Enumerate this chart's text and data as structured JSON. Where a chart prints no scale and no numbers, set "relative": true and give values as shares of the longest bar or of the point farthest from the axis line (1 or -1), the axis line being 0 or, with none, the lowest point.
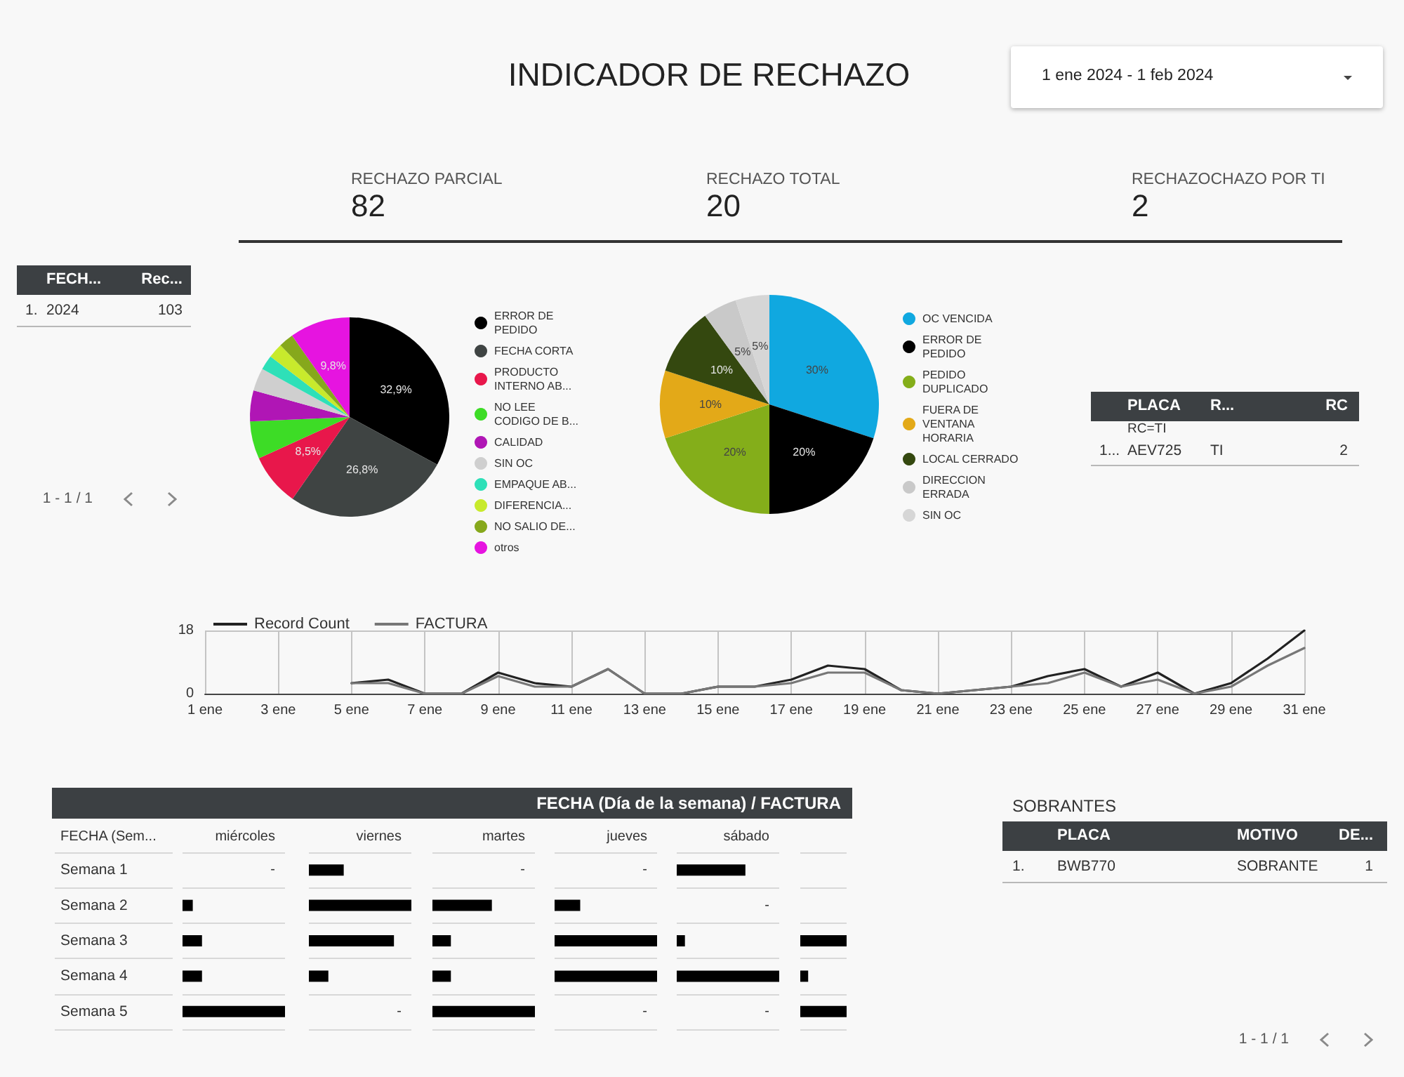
{
  "chart_data": [
    {
      "type": "other",
      "title": "INDICADOR DE RECHAZO",
      "annotations": [
        "1 ene 2024 - 1 feb 2024"
      ],
      "categories": [
        "RECHAZO PARCIAL",
        "RECHAZO TOTAL",
        "RECHAZOCHAZO POR TI"
      ],
      "values": [
        82,
        20,
        2
      ],
      "data_labels": true
    },
    {
      "type": "other",
      "categories": [
        null,
        "FECH...",
        "Rec..."
      ],
      "annotations": [
        "1.",
        "2024",
        "103",
        "1 - 1 / 1"
      ]
    },
    {
      "type": "pie",
      "categories": [
        "ERROR DE PEDIDO",
        "FECHA CORTA",
        "PRODUCTO INTERNO AB...",
        "NO LEE CODIGO DE B...",
        "CALIDAD",
        "SIN OC",
        "EMPAQUE AB...",
        "DIFERENCIA...",
        "NO SALIO DE...",
        "otros"
      ],
      "values": [
        32.9,
        26.8,
        8.5,
        6.1,
        5.0,
        3.7,
        2.4,
        2.4,
        2.4,
        9.8
      ],
      "colors": [
        "#000000",
        "#3f4443",
        "#e8174b",
        "#3ddc26",
        "#b016b5",
        "#cfcfcf",
        "#2ee0b8",
        "#c8ea2c",
        "#86a81c",
        "#e614e0"
      ],
      "value_labels": [
        "32,9%",
        "26,8%",
        "8,5%",
        null,
        null,
        null,
        null,
        null,
        null,
        "9,8%"
      ],
      "legend": "right"
    },
    {
      "type": "pie",
      "categories": [
        "OC VENCIDA",
        "ERROR DE PEDIDO",
        "PEDIDO DUPLICADO",
        "FUERA DE VENTANA HORARIA",
        "LOCAL CERRADO",
        "DIRECCION ERRADA",
        "SIN OC"
      ],
      "values": [
        30,
        20,
        20,
        10,
        10,
        5,
        5
      ],
      "colors": [
        "#10a8e0",
        "#000000",
        "#84ae1a",
        "#e3a918",
        "#34480f",
        "#c9c9c9",
        "#d6d6d6"
      ],
      "value_labels": [
        "30%",
        "20%",
        "20%",
        "10%",
        "10%",
        "5%",
        "5%"
      ],
      "legend": "right"
    },
    {
      "type": "other",
      "subtitle": "RC=TI",
      "categories": [
        null,
        "PLACA",
        "R...",
        "RC"
      ],
      "annotations": [
        "1...",
        "AEV725",
        "TI",
        "2"
      ]
    },
    {
      "type": "line",
      "x": [
        "2024-01-05",
        "2024-01-06",
        "2024-01-07",
        "2024-01-08",
        "2024-01-09",
        "2024-01-10",
        "2024-01-11",
        "2024-01-12",
        "2024-01-13",
        "2024-01-14",
        "2024-01-15",
        "2024-01-16",
        "2024-01-17",
        "2024-01-18",
        "2024-01-19",
        "2024-01-20",
        "2024-01-21",
        "2024-01-22",
        "2024-01-23",
        "2024-01-24",
        "2024-01-25",
        "2024-01-26",
        "2024-01-27",
        "2024-01-28",
        "2024-01-29",
        "2024-01-30",
        "2024-01-31"
      ],
      "series": [
        {
          "name": "Record Count",
          "color": "#222222",
          "values": [
            3,
            4,
            0,
            0,
            6,
            3,
            2,
            7,
            0,
            0,
            2,
            2,
            4,
            8,
            7,
            1,
            0,
            1,
            2,
            5,
            7,
            2,
            6,
            0,
            3,
            10,
            18
          ]
        },
        {
          "name": "FACTURA",
          "color": "#777777",
          "values": [
            3,
            3,
            0,
            0,
            5,
            2,
            2,
            7,
            0,
            0,
            2,
            2,
            3,
            6,
            6,
            1,
            0,
            1,
            2,
            3,
            6,
            2,
            4,
            0,
            2,
            8,
            13
          ]
        }
      ],
      "xlim": [
        "2024-01-01",
        "2024-01-31"
      ],
      "xticks": [
        {
          "value": "2024-01-01",
          "label": "1 ene"
        },
        {
          "value": "2024-01-03",
          "label": "3 ene"
        },
        {
          "value": "2024-01-05",
          "label": "5 ene"
        },
        {
          "value": "2024-01-07",
          "label": "7 ene"
        },
        {
          "value": "2024-01-09",
          "label": "9 ene"
        },
        {
          "value": "2024-01-11",
          "label": "11 ene"
        },
        {
          "value": "2024-01-13",
          "label": "13 ene"
        },
        {
          "value": "2024-01-15",
          "label": "15 ene"
        },
        {
          "value": "2024-01-17",
          "label": "17 ene"
        },
        {
          "value": "2024-01-19",
          "label": "19 ene"
        },
        {
          "value": "2024-01-21",
          "label": "21 ene"
        },
        {
          "value": "2024-01-23",
          "label": "23 ene"
        },
        {
          "value": "2024-01-25",
          "label": "25 ene"
        },
        {
          "value": "2024-01-27",
          "label": "27 ene"
        },
        {
          "value": "2024-01-29",
          "label": "29 ene"
        },
        {
          "value": "2024-01-31",
          "label": "31 ene"
        }
      ],
      "ylim": [
        0,
        18
      ],
      "yticks": [
        0,
        18
      ],
      "grid": true,
      "legend": "top left",
      "marker": "none",
      "line_style": "solid"
    },
    {
      "type": "other",
      "title": "FECHA (Día de la semana) / FACTURA"
    },
    {
      "type": "bar",
      "orientation": "horizontal",
      "relative": true,
      "title": "miércoles",
      "ylabel": "FECHA (Sem...",
      "tick_labels": "y",
      "categories": [
        "Semana 1",
        "Semana 2",
        "Semana 3",
        "Semana 4",
        "Semana 5"
      ],
      "color": "#000000",
      "values": [
        null,
        0.1,
        0.19,
        0.19,
        1
      ],
      "annotations": [
        "-"
      ]
    },
    {
      "type": "bar",
      "orientation": "horizontal",
      "relative": true,
      "title": "viernes",
      "tick_labels": false,
      "categories": [
        "Semana 1",
        "Semana 2",
        "Semana 3",
        "Semana 4",
        "Semana 5"
      ],
      "color": "#000000",
      "values": [
        0.34,
        1,
        0.83,
        0.19,
        null
      ],
      "annotations": [
        "-"
      ]
    },
    {
      "type": "bar",
      "orientation": "horizontal",
      "relative": true,
      "title": "martes",
      "tick_labels": false,
      "categories": [
        "Semana 1",
        "Semana 2",
        "Semana 3",
        "Semana 4",
        "Semana 5"
      ],
      "color": "#000000",
      "values": [
        null,
        0.58,
        0.18,
        0.18,
        1
      ],
      "annotations": [
        "-"
      ]
    },
    {
      "type": "bar",
      "orientation": "horizontal",
      "relative": true,
      "title": "jueves",
      "tick_labels": false,
      "categories": [
        "Semana 1",
        "Semana 2",
        "Semana 3",
        "Semana 4",
        "Semana 5"
      ],
      "color": "#000000",
      "values": [
        null,
        0.25,
        1,
        1,
        null
      ],
      "annotations": [
        "-",
        "-"
      ]
    },
    {
      "type": "bar",
      "orientation": "horizontal",
      "relative": true,
      "title": "sábado",
      "tick_labels": false,
      "categories": [
        "Semana 1",
        "Semana 2",
        "Semana 3",
        "Semana 4",
        "Semana 5"
      ],
      "color": "#000000",
      "values": [
        0.67,
        null,
        0.08,
        1,
        null
      ],
      "annotations": [
        "-",
        "-"
      ]
    },
    {
      "type": "bar",
      "orientation": "horizontal",
      "relative": true,
      "tick_labels": false,
      "categories": [
        "Semana 1",
        "Semana 2",
        "Semana 3",
        "Semana 4",
        "Semana 5"
      ],
      "color": "#000000",
      "values": [
        null,
        null,
        1,
        0.17,
        1
      ]
    },
    {
      "type": "other",
      "title": "SOBRANTES",
      "categories": [
        null,
        "PLACA",
        "MOTIVO",
        "DE..."
      ],
      "annotations": [
        "1.",
        "BWB770",
        "SOBRANTE",
        "1",
        "1 - 1 / 1"
      ]
    }
  ]
}
